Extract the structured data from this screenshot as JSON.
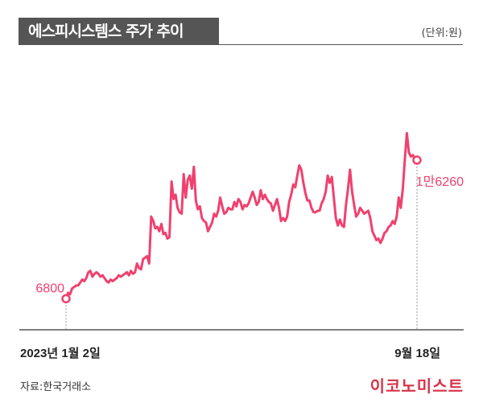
{
  "header": {
    "title": "에스피시스템스 주가 추이",
    "unit": "(단위:원)"
  },
  "footer": {
    "source": "자료:한국거래소",
    "logo_text": "이코노미스트"
  },
  "colors": {
    "line": "#f0416e",
    "title_bg": "#555555",
    "axis": "#555555",
    "logo": "#d8334a"
  },
  "chart_data": {
    "type": "line",
    "title": "에스피시스템스 주가 추이",
    "unit": "(단위:원)",
    "x_tick_labels": [
      "2023년 1월 2일",
      "9월 18일"
    ],
    "start_label": "6800",
    "end_label": "1만6260",
    "ylim": [
      5500,
      19500
    ],
    "grid": false,
    "series": [
      {
        "values": [
          6800,
          7200,
          7100,
          7500,
          7600,
          7700,
          7700,
          7900,
          8100,
          8000,
          8200,
          8600,
          8700,
          8300,
          8500,
          8600,
          8500,
          8300,
          8400,
          8200,
          8000,
          7900,
          8100,
          8000,
          8100,
          8200,
          8400,
          8300,
          8400,
          8500,
          8600,
          8400,
          8700,
          8500,
          8600,
          9200,
          8900,
          8800,
          9500,
          9600,
          9700,
          9200,
          12400,
          12100,
          11600,
          11700,
          11400,
          11900,
          11200,
          11300,
          10900,
          11000,
          14800,
          13600,
          13900,
          13000,
          12700,
          12600,
          15300,
          13700,
          14900,
          15200,
          14300,
          15800,
          13500,
          12900,
          13100,
          12300,
          12100,
          12000,
          11400,
          11700,
          12000,
          12600,
          12400,
          12800,
          13700,
          13100,
          12600,
          12700,
          13000,
          12900,
          12900,
          13400,
          13100,
          13600,
          13400,
          12900,
          13200,
          13100,
          13300,
          13700,
          14100,
          13700,
          13200,
          13400,
          14200,
          13600,
          13900,
          13600,
          13400,
          13300,
          12800,
          13200,
          13600,
          13000,
          12100,
          12300,
          12100,
          12400,
          13400,
          13900,
          14600,
          14400,
          15200,
          15900,
          15600,
          14700,
          14000,
          13500,
          13500,
          13000,
          12700,
          12700,
          12800,
          12800,
          13300,
          13600,
          14100,
          15200,
          14700,
          15100,
          13700,
          12300,
          11800,
          12200,
          11800,
          11700,
          13200,
          14300,
          15600,
          14100,
          13200,
          12400,
          12600,
          13000,
          12800,
          12600,
          12700,
          12800,
          12300,
          11400,
          11100,
          10800,
          10900,
          10600,
          10900,
          11300,
          11400,
          11700,
          11800,
          12100,
          11900,
          12400,
          13700,
          13000,
          14300,
          16300,
          18100,
          16800,
          16500,
          16600,
          16300,
          16260
        ]
      }
    ]
  }
}
